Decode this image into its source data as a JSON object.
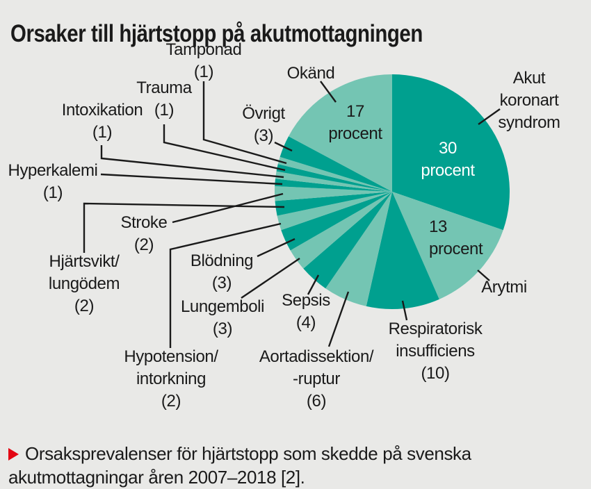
{
  "title": "Orsaker till hjärtstopp på akutmottagningen",
  "caption": {
    "marker_icon": "red-triangle-right",
    "marker_color": "#e30613",
    "text": "Orsaksprevalenser för hjärtstopp som skedde på svenska akutmottagningar åren 2007–2018 [2]."
  },
  "colors": {
    "background": "#e9e9e7",
    "slice_dark": "#00a08f",
    "slice_light": "#74c5b3",
    "text": "#1a1a1a",
    "leader_line": "#1a1a1a",
    "inside_label_on_dark": "#ffffff"
  },
  "chart_data": {
    "type": "pie",
    "title": "Orsaker till hjärtstopp på akutmottagningen",
    "unit": "antal (procent för de största)",
    "start_angle_deg": 0,
    "direction": "clockwise",
    "legend_position": "callout-labels",
    "slices": [
      {
        "label": "Akut koronart syndrom",
        "value": 30,
        "display": "30 procent"
      },
      {
        "label": "Arytmi",
        "value": 13,
        "display": "13 procent"
      },
      {
        "label": "Respiratorisk insufficiens",
        "value": 10,
        "display": "(10)"
      },
      {
        "label": "Aortadissektion/-ruptur",
        "value": 6,
        "display": "(6)"
      },
      {
        "label": "Sepsis",
        "value": 4,
        "display": "(4)"
      },
      {
        "label": "Lungemboli",
        "value": 3,
        "display": "(3)"
      },
      {
        "label": "Blödning",
        "value": 3,
        "display": "(3)"
      },
      {
        "label": "Hypotension/intorkning",
        "value": 2,
        "display": "(2)"
      },
      {
        "label": "Hjärtsvikt/lungödem",
        "value": 2,
        "display": "(2)"
      },
      {
        "label": "Stroke",
        "value": 2,
        "display": "(2)"
      },
      {
        "label": "Hyperkalemi",
        "value": 1,
        "display": "(1)"
      },
      {
        "label": "Intoxikation",
        "value": 1,
        "display": "(1)"
      },
      {
        "label": "Trauma",
        "value": 1,
        "display": "(1)"
      },
      {
        "label": "Tamponad",
        "value": 1,
        "display": "(1)"
      },
      {
        "label": "Övrigt",
        "value": 3,
        "display": "(3)"
      },
      {
        "label": "Okänd",
        "value": 17,
        "display": "17 procent"
      }
    ]
  },
  "inside_labels": {
    "akut_koronart": "30\nprocent",
    "arytmi": "13\nprocent",
    "okand": "17\nprocent"
  },
  "callouts": {
    "tamponad": "Tamponad\n(1)",
    "trauma": "Trauma\n(1)",
    "intoxikation": "Intoxikation\n(1)",
    "hyperkalemi": "Hyperkalemi\n(1)",
    "ovrigt": "Övrigt\n(3)",
    "okand": "Okänd",
    "akut_koronart": "Akut koronart\nsyndrom",
    "arytmi": "Arytmi",
    "respiratorisk": "Respiratorisk\ninsufficiens\n(10)",
    "aortadissektion": "Aortadissektion/\n-ruptur\n(6)",
    "sepsis": "Sepsis\n(4)",
    "lungemboli": "Lungemboli\n(3)",
    "blodning": "Blödning\n(3)",
    "hypotension": "Hypotension/\nintorkning\n(2)",
    "hjartsvikt": "Hjärtsvikt/\nlungödem\n(2)",
    "stroke": "Stroke\n(2)"
  }
}
